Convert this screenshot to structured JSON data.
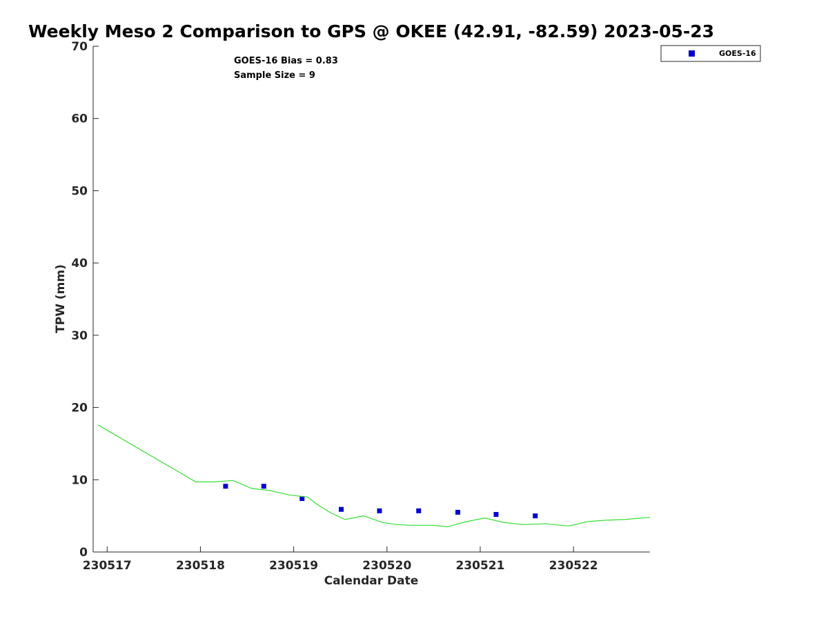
{
  "chart_data": {
    "type": "scatter",
    "title": "Weekly Meso 2 Comparison to GPS @ OKEE (42.91, -82.59) 2023-05-23",
    "xlabel": "Calendar Date",
    "ylabel": "TPW (mm)",
    "xlim": [
      -0.15,
      5.82
    ],
    "ylim": [
      0,
      70
    ],
    "x_ticks": [
      0,
      1,
      2,
      3,
      4,
      5
    ],
    "x_tick_labels": [
      "230517",
      "230518",
      "230519",
      "230520",
      "230521",
      "230522"
    ],
    "y_ticks": [
      0,
      10,
      20,
      30,
      40,
      50,
      60,
      70
    ],
    "y_tick_labels": [
      "0",
      "10",
      "20",
      "30",
      "40",
      "50",
      "60",
      "70"
    ],
    "annotations": [
      "GOES-16 Bias = 0.83",
      "Sample Size = 9"
    ],
    "legend": {
      "position": "top-right",
      "entries": [
        "GOES-16"
      ]
    },
    "series": [
      {
        "name": "GOES-16",
        "kind": "scatter",
        "color": "#0000cc",
        "x": [
          1.27,
          1.68,
          2.09,
          2.51,
          2.92,
          3.34,
          3.76,
          4.17,
          4.59
        ],
        "y": [
          9.1,
          9.1,
          7.4,
          5.9,
          5.7,
          5.7,
          5.5,
          5.2,
          5.0
        ]
      },
      {
        "kind": "line",
        "color": "#33dd33",
        "x": [
          -0.1,
          0.95,
          1.15,
          1.35,
          1.55,
          1.75,
          1.95,
          2.15,
          2.25,
          2.4,
          2.55,
          2.75,
          2.95,
          3.1,
          3.25,
          3.5,
          3.65,
          3.85,
          4.05,
          4.25,
          4.45,
          4.7,
          4.95,
          5.15,
          5.35,
          5.55,
          5.82
        ],
        "y": [
          17.6,
          9.7,
          9.7,
          9.9,
          8.8,
          8.5,
          7.9,
          7.6,
          6.6,
          5.4,
          4.5,
          5.0,
          4.1,
          3.8,
          3.7,
          3.7,
          3.5,
          4.2,
          4.7,
          4.1,
          3.8,
          3.9,
          3.6,
          4.2,
          4.4,
          4.5,
          4.8
        ]
      }
    ]
  }
}
